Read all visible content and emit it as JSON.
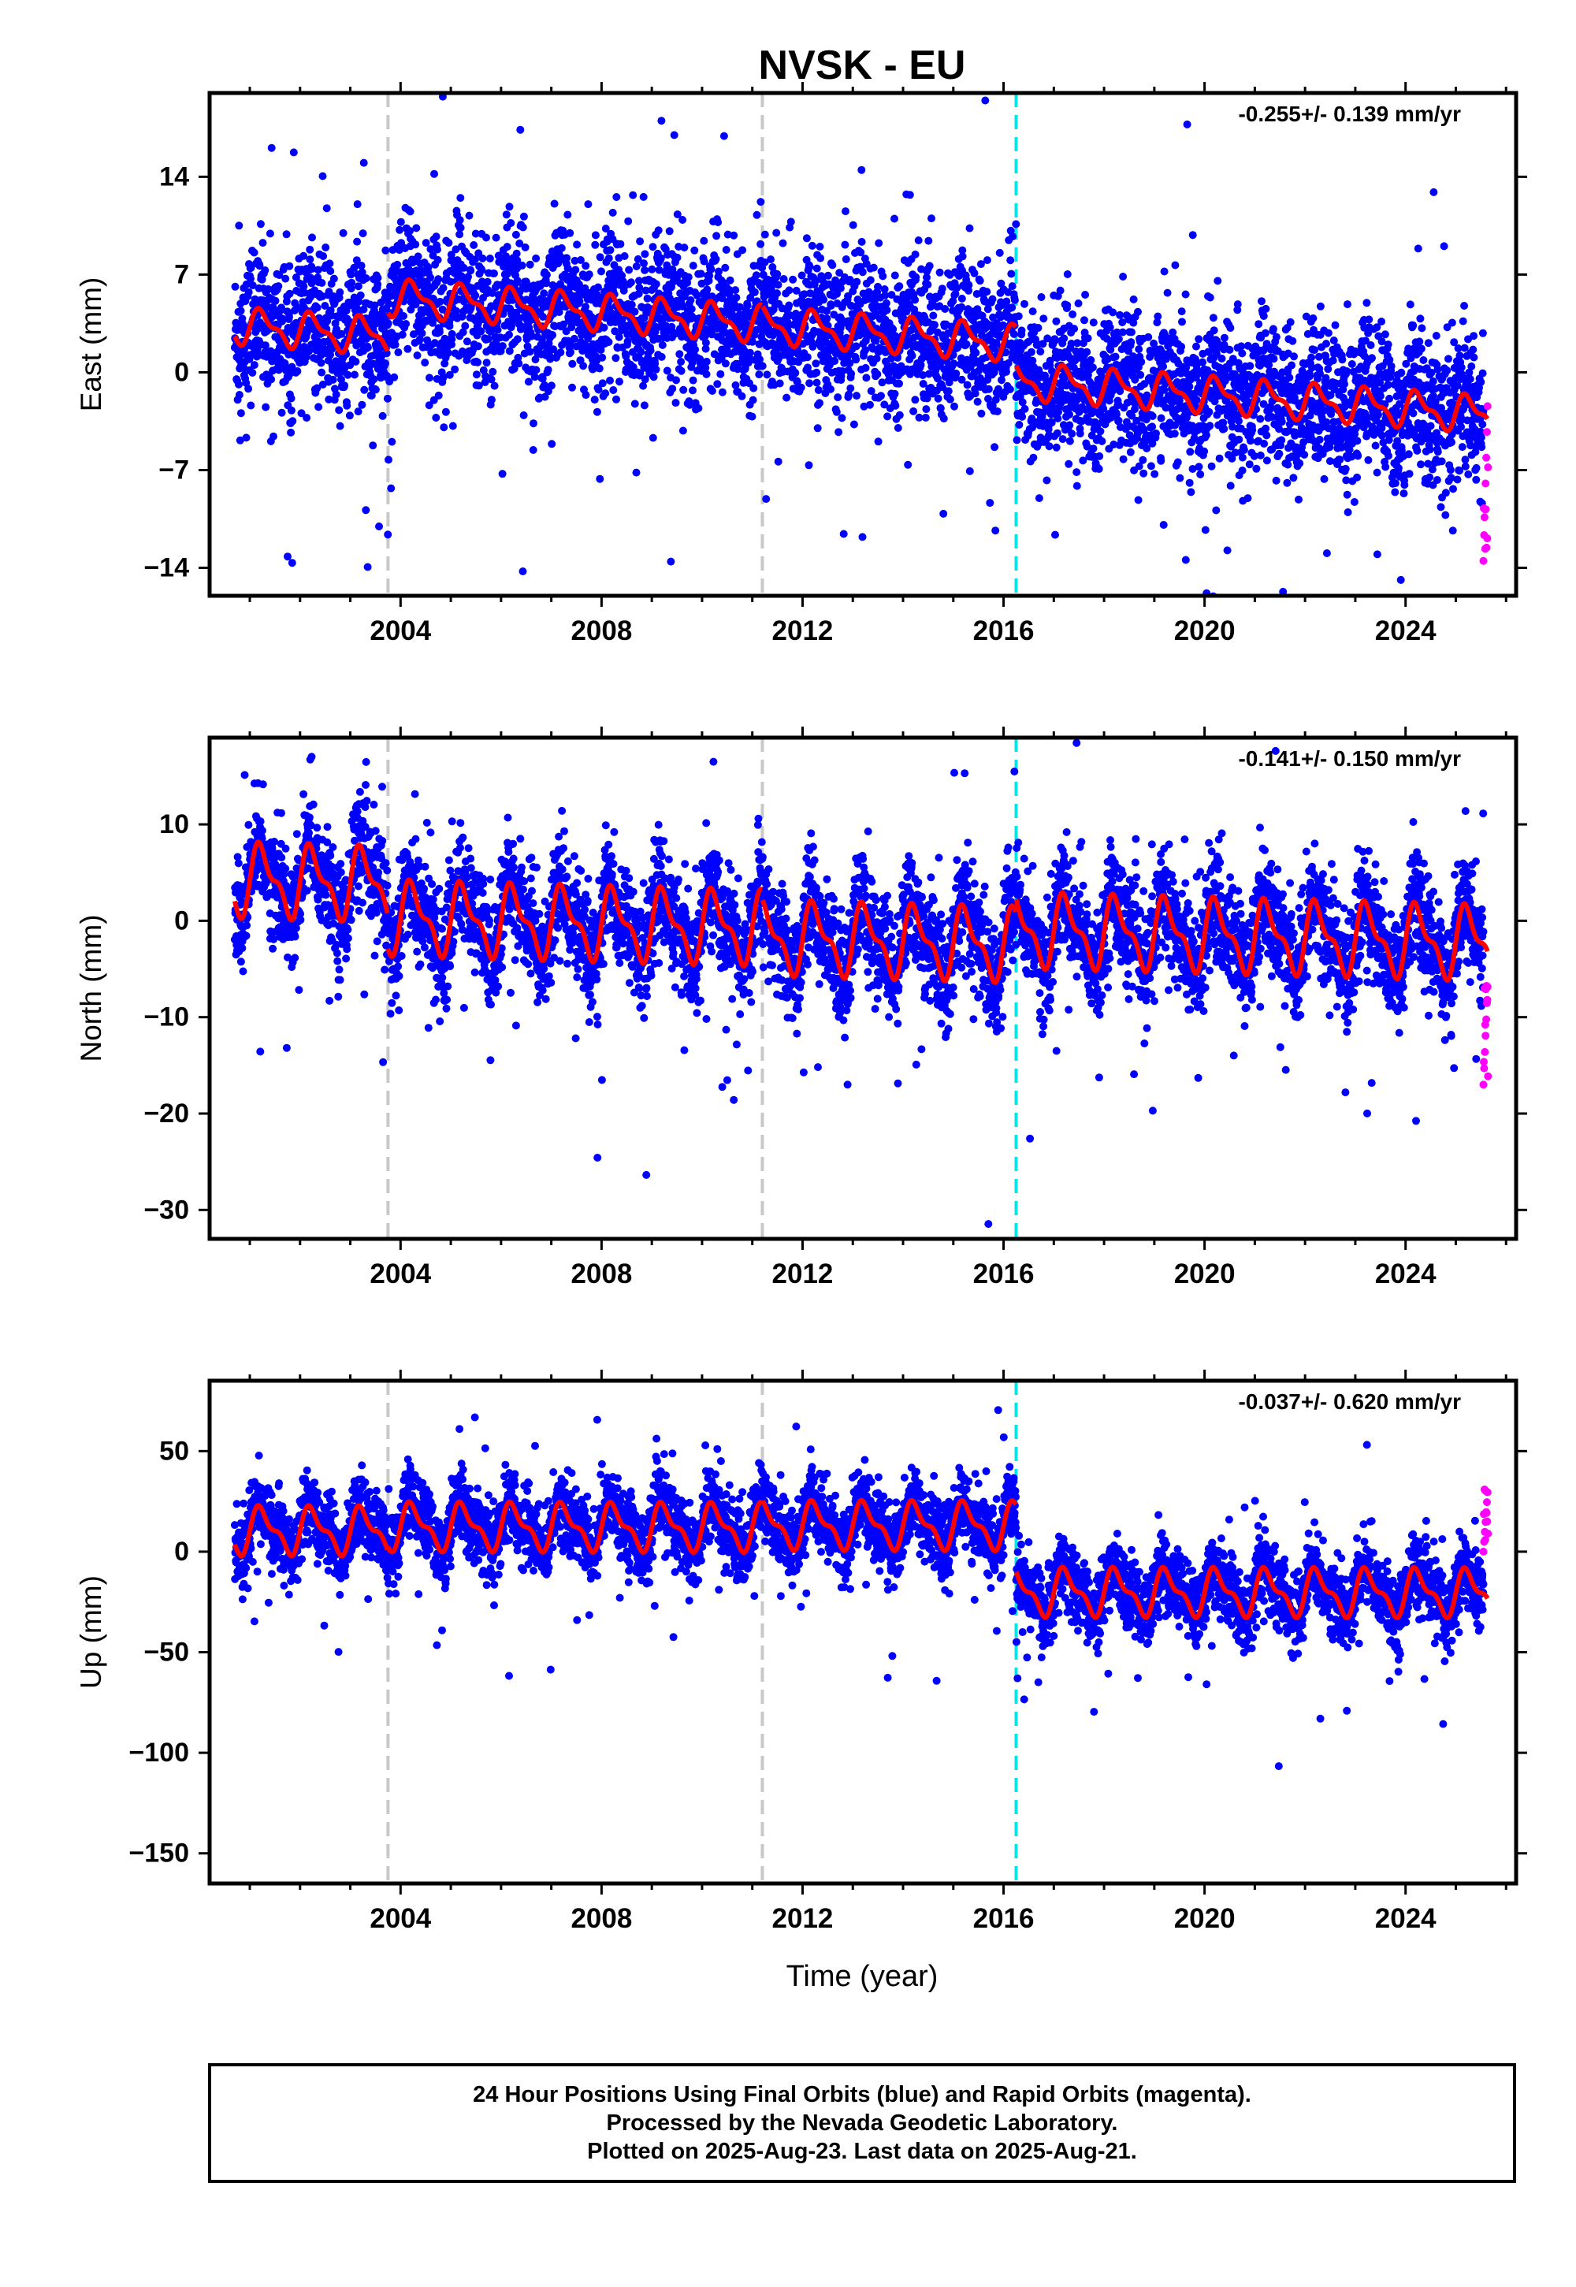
{
  "title": "NVSK - EU",
  "xlabel": "Time (year)",
  "xticks": [
    2004,
    2008,
    2012,
    2016,
    2020,
    2024
  ],
  "xlim": [
    2000.2,
    2026.2
  ],
  "colors": {
    "final_orbits": "#0000ff",
    "rapid_orbits": "#ff00ff",
    "model": "#ff0000",
    "offset_line": "#c8c8c8",
    "equipment_change": "#00e5e5"
  },
  "offset_lines": [
    2003.75,
    2011.2
  ],
  "equipment_change_lines": [
    2016.25
  ],
  "data_start": 2000.7,
  "data_end": 2025.64,
  "rapid_start": 2025.55,
  "chart_data": [
    {
      "type": "scatter",
      "component": "East",
      "ylabel": "East (mm)",
      "rate": "-0.255+/- 0.139 mm/yr",
      "yticks": [
        -14,
        -7,
        0,
        7,
        14
      ],
      "ylim": [
        -16,
        20
      ],
      "model": {
        "segments": [
          {
            "from": 2000.7,
            "to": 2003.75,
            "offset": 0.2
          },
          {
            "from": 2003.75,
            "to": 2011.2,
            "offset": 3.0
          },
          {
            "from": 2011.2,
            "to": 2016.25,
            "offset": 2.9
          },
          {
            "from": 2016.25,
            "to": 2025.64,
            "offset": 0.2
          }
        ],
        "trend_mm_per_yr": -0.255,
        "annual_amplitude": 1.1,
        "scatter_sd": 2.6
      },
      "rapid_values_range": [
        -13.5,
        -1.5
      ]
    },
    {
      "type": "scatter",
      "component": "North",
      "ylabel": "North (mm)",
      "rate": "-0.141+/- 0.150 mm/yr",
      "yticks": [
        -30,
        -20,
        -10,
        0,
        10
      ],
      "ylim": [
        -33,
        19
      ],
      "model": {
        "segments": [
          {
            "from": 2000.7,
            "to": 2003.75,
            "offset": 2.5
          },
          {
            "from": 2003.75,
            "to": 2011.2,
            "offset": -1.0
          },
          {
            "from": 2011.2,
            "to": 2016.25,
            "offset": -2.0
          },
          {
            "from": 2016.25,
            "to": 2025.64,
            "offset": -0.5
          }
        ],
        "trend_mm_per_yr": -0.141,
        "annual_amplitude": 3.2,
        "scatter_sd": 2.8
      },
      "rapid_values_range": [
        -17,
        -6
      ]
    },
    {
      "type": "scatter",
      "component": "Up",
      "ylabel": "Up (mm)",
      "rate": "-0.037+/- 0.620 mm/yr",
      "yticks": [
        -150,
        -100,
        -50,
        0,
        50
      ],
      "ylim": [
        -165,
        85
      ],
      "model": {
        "segments": [
          {
            "from": 2000.7,
            "to": 2003.75,
            "offset": 10
          },
          {
            "from": 2003.75,
            "to": 2011.2,
            "offset": 12
          },
          {
            "from": 2011.2,
            "to": 2016.25,
            "offset": 13
          },
          {
            "from": 2016.25,
            "to": 2025.64,
            "offset": -20
          }
        ],
        "trend_mm_per_yr": -0.037,
        "annual_amplitude": 10,
        "scatter_sd": 9
      },
      "rapid_values_range": [
        0,
        32
      ]
    }
  ],
  "footer": {
    "line1": "24 Hour Positions Using Final Orbits (blue) and Rapid Orbits (magenta).",
    "line2": "Processed by the Nevada Geodetic Laboratory.",
    "line3": "Plotted on 2025-Aug-23. Last data on 2025-Aug-21."
  }
}
